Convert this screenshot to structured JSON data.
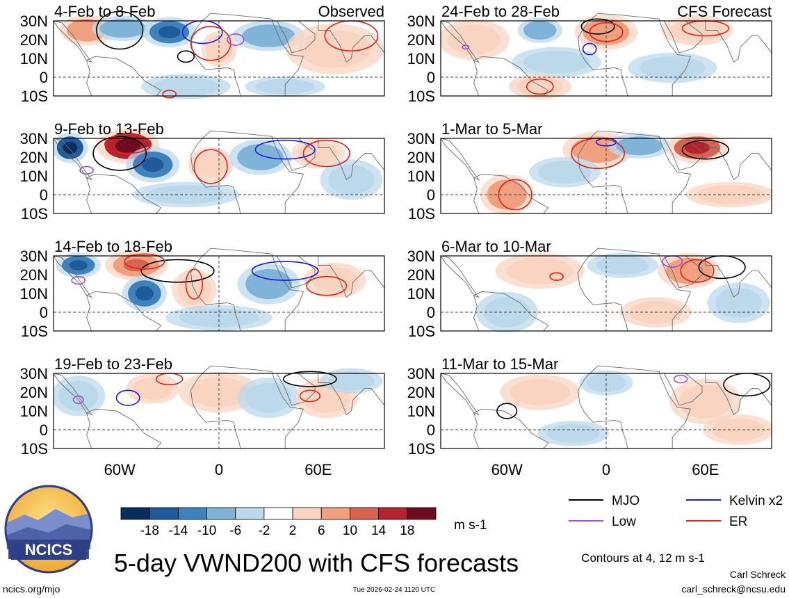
{
  "chart_data": {
    "type": "heatmap",
    "title": "5-day VWND200 with CFS forecasts",
    "variable": "VWND200",
    "units": "m s-1",
    "contour_note": "Contours at 4, 12 m s-1",
    "columns": [
      {
        "label": "Observed",
        "panels": [
          "4-Feb to 8-Feb",
          "9-Feb to 13-Feb",
          "14-Feb to 18-Feb",
          "19-Feb to 23-Feb"
        ]
      },
      {
        "label": "CFS Forecast",
        "panels": [
          "24-Feb to 28-Feb",
          "1-Mar to 5-Mar",
          "6-Mar to 10-Mar",
          "11-Mar to 15-Mar"
        ]
      }
    ],
    "y_tick_labels": [
      "30N",
      "20N",
      "10N",
      "0",
      "10S"
    ],
    "y_ticks": [
      30,
      20,
      10,
      0,
      -10
    ],
    "x_tick_labels": [
      "60W",
      "0",
      "60E"
    ],
    "x_ticks": [
      -60,
      0,
      60
    ],
    "xlim": [
      -100,
      100
    ],
    "ylim": [
      -10,
      30
    ],
    "colorbar": {
      "labels": [
        "-18",
        "-14",
        "-10",
        "-6",
        "-2",
        "2",
        "6",
        "10",
        "14",
        "18"
      ],
      "levels": [
        -18,
        -14,
        -10,
        -6,
        -2,
        2,
        6,
        10,
        14,
        18
      ],
      "colors": [
        "#0b2d5e",
        "#1f5a9a",
        "#3d82bd",
        "#7fb4d8",
        "#bcd9ec",
        "#ffffff",
        "#f9d4c0",
        "#f0a07e",
        "#d8634f",
        "#b3242e",
        "#6e0b21"
      ]
    },
    "contour_legend": [
      {
        "name": "MJO",
        "color": "#000000"
      },
      {
        "name": "Kelvin x2",
        "color": "#1a1adb"
      },
      {
        "name": "Low",
        "color": "#a24bdc"
      },
      {
        "name": "ER",
        "color": "#e0241b"
      }
    ],
    "anomaly_blobs": [
      [
        {
          "lon": -80,
          "lat": 25,
          "rx": 12,
          "ry": 6,
          "v": 8
        },
        {
          "lon": -58,
          "lat": 26,
          "rx": 14,
          "ry": 5,
          "v": -8
        },
        {
          "lon": -30,
          "lat": 24,
          "rx": 12,
          "ry": 6,
          "v": -10
        },
        {
          "lon": 0,
          "lat": 15,
          "rx": 8,
          "ry": 7,
          "v": 6
        },
        {
          "lon": 30,
          "lat": 22,
          "rx": 16,
          "ry": 6,
          "v": -6
        },
        {
          "lon": 70,
          "lat": 15,
          "rx": 22,
          "ry": 10,
          "v": 4
        },
        {
          "lon": -20,
          "lat": -5,
          "rx": 20,
          "ry": 5,
          "v": -3
        },
        {
          "lon": 40,
          "lat": -5,
          "rx": 18,
          "ry": 4,
          "v": -3
        }
      ],
      [
        {
          "lon": -90,
          "lat": 25,
          "rx": 8,
          "ry": 6,
          "v": -16
        },
        {
          "lon": -55,
          "lat": 26,
          "rx": 14,
          "ry": 7,
          "v": 16
        },
        {
          "lon": -40,
          "lat": 16,
          "rx": 12,
          "ry": 7,
          "v": -10
        },
        {
          "lon": -5,
          "lat": 16,
          "rx": 10,
          "ry": 7,
          "v": 6
        },
        {
          "lon": 25,
          "lat": 20,
          "rx": 14,
          "ry": 7,
          "v": -6
        },
        {
          "lon": 60,
          "lat": 22,
          "rx": 12,
          "ry": 6,
          "v": 4
        },
        {
          "lon": -20,
          "lat": 0,
          "rx": 24,
          "ry": 5,
          "v": -3
        },
        {
          "lon": 80,
          "lat": 8,
          "rx": 14,
          "ry": 8,
          "v": -3
        }
      ],
      [
        {
          "lon": -85,
          "lat": 25,
          "rx": 10,
          "ry": 5,
          "v": -10
        },
        {
          "lon": -50,
          "lat": 25,
          "rx": 14,
          "ry": 6,
          "v": 10
        },
        {
          "lon": -45,
          "lat": 10,
          "rx": 10,
          "ry": 7,
          "v": -10
        },
        {
          "lon": -15,
          "lat": 12,
          "rx": 10,
          "ry": 8,
          "v": 4
        },
        {
          "lon": 30,
          "lat": 15,
          "rx": 14,
          "ry": 8,
          "v": -6
        },
        {
          "lon": 70,
          "lat": 17,
          "rx": 14,
          "ry": 7,
          "v": 6
        },
        {
          "lon": 0,
          "lat": -3,
          "rx": 24,
          "ry": 5,
          "v": -3
        }
      ],
      [
        {
          "lon": -85,
          "lat": 18,
          "rx": 12,
          "ry": 8,
          "v": -4
        },
        {
          "lon": -40,
          "lat": 22,
          "rx": 12,
          "ry": 6,
          "v": 4
        },
        {
          "lon": 0,
          "lat": 20,
          "rx": 18,
          "ry": 8,
          "v": 4
        },
        {
          "lon": 30,
          "lat": 17,
          "rx": 14,
          "ry": 8,
          "v": -4
        },
        {
          "lon": 65,
          "lat": 17,
          "rx": 14,
          "ry": 8,
          "v": 6
        },
        {
          "lon": 80,
          "lat": 26,
          "rx": 14,
          "ry": 5,
          "v": -4
        }
      ],
      [
        {
          "lon": -80,
          "lat": 20,
          "rx": 16,
          "ry": 8,
          "v": 4
        },
        {
          "lon": -40,
          "lat": 25,
          "rx": 10,
          "ry": 5,
          "v": -6
        },
        {
          "lon": 0,
          "lat": 24,
          "rx": 14,
          "ry": 7,
          "v": 8
        },
        {
          "lon": 55,
          "lat": 25,
          "rx": 16,
          "ry": 6,
          "v": 6
        },
        {
          "lon": -30,
          "lat": 8,
          "rx": 20,
          "ry": 6,
          "v": -3
        },
        {
          "lon": -40,
          "lat": -5,
          "rx": 14,
          "ry": 5,
          "v": 4
        },
        {
          "lon": 40,
          "lat": 5,
          "rx": 20,
          "ry": 6,
          "v": -3
        }
      ],
      [
        {
          "lon": -5,
          "lat": 24,
          "rx": 16,
          "ry": 7,
          "v": 8
        },
        {
          "lon": 20,
          "lat": 26,
          "rx": 14,
          "ry": 5,
          "v": -6
        },
        {
          "lon": 55,
          "lat": 25,
          "rx": 14,
          "ry": 6,
          "v": 12
        },
        {
          "lon": -60,
          "lat": 0,
          "rx": 12,
          "ry": 8,
          "v": 8
        },
        {
          "lon": -25,
          "lat": 12,
          "rx": 16,
          "ry": 6,
          "v": -3
        },
        {
          "lon": 75,
          "lat": 0,
          "rx": 20,
          "ry": 5,
          "v": 3
        }
      ],
      [
        {
          "lon": -40,
          "lat": 22,
          "rx": 20,
          "ry": 7,
          "v": 4
        },
        {
          "lon": 10,
          "lat": 25,
          "rx": 16,
          "ry": 5,
          "v": -4
        },
        {
          "lon": 50,
          "lat": 22,
          "rx": 14,
          "ry": 7,
          "v": 8
        },
        {
          "lon": -60,
          "lat": 0,
          "rx": 14,
          "ry": 8,
          "v": -4
        },
        {
          "lon": 30,
          "lat": 0,
          "rx": 16,
          "ry": 6,
          "v": 3
        },
        {
          "lon": 80,
          "lat": 5,
          "rx": 14,
          "ry": 8,
          "v": -3
        }
      ],
      [
        {
          "lon": -40,
          "lat": 20,
          "rx": 18,
          "ry": 7,
          "v": 4
        },
        {
          "lon": 0,
          "lat": 25,
          "rx": 12,
          "ry": 5,
          "v": -3
        },
        {
          "lon": 60,
          "lat": 15,
          "rx": 16,
          "ry": 9,
          "v": 5
        },
        {
          "lon": 80,
          "lat": 0,
          "rx": 16,
          "ry": 6,
          "v": 4
        },
        {
          "lon": -20,
          "lat": -2,
          "rx": 16,
          "ry": 5,
          "v": -3
        }
      ]
    ],
    "contours": [
      [
        {
          "type": "MJO",
          "lon": -60,
          "lat": 25,
          "rx": 14,
          "ry": 10
        },
        {
          "type": "MJO",
          "lon": -20,
          "lat": 11,
          "rx": 5,
          "ry": 3
        },
        {
          "type": "Kelvin x2",
          "lon": -10,
          "lat": 24,
          "rx": 12,
          "ry": 6
        },
        {
          "type": "ER",
          "lon": -5,
          "lat": 18,
          "rx": 12,
          "ry": 9
        },
        {
          "type": "ER",
          "lon": 80,
          "lat": 22,
          "rx": 16,
          "ry": 8
        },
        {
          "type": "ER",
          "lon": -30,
          "lat": -9,
          "rx": 4,
          "ry": 2
        },
        {
          "type": "Low",
          "lon": 10,
          "lat": 20,
          "rx": 5,
          "ry": 3
        }
      ],
      [
        {
          "type": "MJO",
          "lon": -60,
          "lat": 22,
          "rx": 16,
          "ry": 9
        },
        {
          "type": "ER",
          "lon": -55,
          "lat": 27,
          "rx": 14,
          "ry": 5
        },
        {
          "type": "ER",
          "lon": -5,
          "lat": 15,
          "rx": 10,
          "ry": 9
        },
        {
          "type": "ER",
          "lon": 65,
          "lat": 22,
          "rx": 14,
          "ry": 7
        },
        {
          "type": "Kelvin x2",
          "lon": 40,
          "lat": 24,
          "rx": 18,
          "ry": 5
        },
        {
          "type": "Low",
          "lon": -80,
          "lat": 13,
          "rx": 4,
          "ry": 2
        }
      ],
      [
        {
          "type": "MJO",
          "lon": -25,
          "lat": 22,
          "rx": 22,
          "ry": 6
        },
        {
          "type": "ER",
          "lon": -45,
          "lat": 27,
          "rx": 12,
          "ry": 4
        },
        {
          "type": "ER",
          "lon": -15,
          "lat": 15,
          "rx": 5,
          "ry": 8
        },
        {
          "type": "ER",
          "lon": 65,
          "lat": 14,
          "rx": 12,
          "ry": 5
        },
        {
          "type": "Kelvin x2",
          "lon": 40,
          "lat": 22,
          "rx": 20,
          "ry": 5
        },
        {
          "type": "Low",
          "lon": -85,
          "lat": 17,
          "rx": 4,
          "ry": 2
        }
      ],
      [
        {
          "type": "Kelvin x2",
          "lon": -55,
          "lat": 17,
          "rx": 7,
          "ry": 4
        },
        {
          "type": "MJO",
          "lon": 55,
          "lat": 27,
          "rx": 16,
          "ry": 4
        },
        {
          "type": "ER",
          "lon": -30,
          "lat": 27,
          "rx": 8,
          "ry": 3
        },
        {
          "type": "ER",
          "lon": 55,
          "lat": 18,
          "rx": 6,
          "ry": 3
        },
        {
          "type": "Low",
          "lon": -85,
          "lat": 16,
          "rx": 3,
          "ry": 2
        }
      ],
      [
        {
          "type": "MJO",
          "lon": -5,
          "lat": 27,
          "rx": 10,
          "ry": 4
        },
        {
          "type": "ER",
          "lon": 0,
          "lat": 24,
          "rx": 10,
          "ry": 5
        },
        {
          "type": "ER",
          "lon": 60,
          "lat": 26,
          "rx": 14,
          "ry": 4
        },
        {
          "type": "ER",
          "lon": -40,
          "lat": -5,
          "rx": 8,
          "ry": 4
        },
        {
          "type": "Kelvin x2",
          "lon": -10,
          "lat": 15,
          "rx": 4,
          "ry": 3
        },
        {
          "type": "Low",
          "lon": -85,
          "lat": 16,
          "rx": 2,
          "ry": 1
        }
      ],
      [
        {
          "type": "MJO",
          "lon": 60,
          "lat": 24,
          "rx": 14,
          "ry": 5
        },
        {
          "type": "ER",
          "lon": -5,
          "lat": 22,
          "rx": 16,
          "ry": 8
        },
        {
          "type": "ER",
          "lon": -55,
          "lat": 0,
          "rx": 10,
          "ry": 8
        },
        {
          "type": "Kelvin x2",
          "lon": 0,
          "lat": 28,
          "rx": 6,
          "ry": 2
        }
      ],
      [
        {
          "type": "MJO",
          "lon": 70,
          "lat": 24,
          "rx": 14,
          "ry": 6
        },
        {
          "type": "ER",
          "lon": 55,
          "lat": 22,
          "rx": 10,
          "ry": 6
        },
        {
          "type": "ER",
          "lon": -30,
          "lat": 19,
          "rx": 4,
          "ry": 2
        },
        {
          "type": "Low",
          "lon": 40,
          "lat": 27,
          "rx": 6,
          "ry": 3
        }
      ],
      [
        {
          "type": "MJO",
          "lon": -60,
          "lat": 10,
          "rx": 6,
          "ry": 4
        },
        {
          "type": "MJO",
          "lon": 85,
          "lat": 24,
          "rx": 14,
          "ry": 6
        },
        {
          "type": "Low",
          "lon": 45,
          "lat": 27,
          "rx": 4,
          "ry": 2
        }
      ]
    ]
  },
  "footer": {
    "logo_text": "NCICS",
    "url": "ncics.org/mjo",
    "timestamp": "Tue 2026-02-24 1120 UTC",
    "author": "Carl Schreck",
    "email": "carl_schreck@ncsu.edu"
  }
}
